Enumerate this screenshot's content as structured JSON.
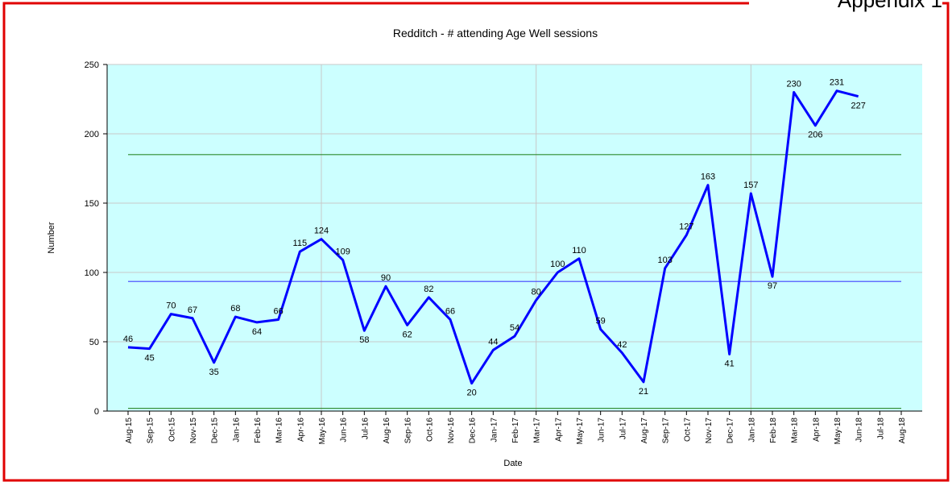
{
  "header_text": "Appendix 1",
  "chart_data": {
    "type": "line",
    "title": "Redditch - # attending Age Well sessions",
    "x_label": "Date",
    "y_label": "Number",
    "categories": [
      "Aug-15",
      "Sep-15",
      "Oct-15",
      "Nov-15",
      "Dec-15",
      "Jan-16",
      "Feb-16",
      "Mar-16",
      "Apr-16",
      "May-16",
      "Jun-16",
      "Jul-16",
      "Aug-16",
      "Sep-16",
      "Oct-16",
      "Nov-16",
      "Dec-16",
      "Jan-17",
      "Feb-17",
      "Mar-17",
      "Apr-17",
      "May-17",
      "Jun-17",
      "Jul-17",
      "Aug-17",
      "Sep-17",
      "Oct-17",
      "Nov-17",
      "Dec-17",
      "Jan-18",
      "Feb-18",
      "Mar-18",
      "Apr-18",
      "May-18",
      "Jun-18",
      "Jul-18",
      "Aug-18"
    ],
    "series": [
      {
        "color": "#0000ff",
        "values": [
          46,
          45,
          70,
          67,
          35,
          68,
          64,
          66,
          115,
          124,
          109,
          58,
          90,
          62,
          82,
          66,
          20,
          44,
          54,
          80,
          100,
          110,
          59,
          42,
          21,
          103,
          127,
          163,
          41,
          157,
          97,
          230,
          206,
          231,
          227,
          null,
          null
        ]
      }
    ],
    "reference_lines": [
      {
        "color": "#2e8b2e",
        "value": 185
      },
      {
        "color": "#4040ff",
        "value": 93.5
      },
      {
        "color": "#2e8b2e",
        "value": 2
      }
    ],
    "ylim": [
      0,
      250
    ],
    "yticks": [
      0,
      50,
      100,
      150,
      200,
      250
    ],
    "grid": true,
    "background": "#ccffff"
  }
}
